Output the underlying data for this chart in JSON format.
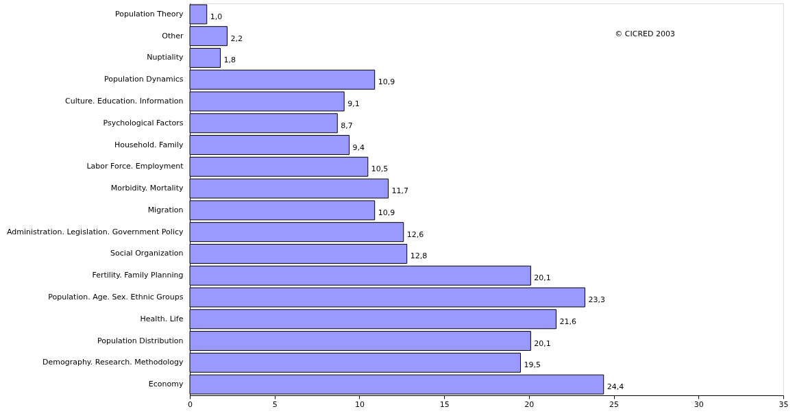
{
  "chart_data": {
    "type": "bar",
    "orientation": "horizontal",
    "categories": [
      "Population Theory",
      "Other",
      "Nuptiality",
      "Population Dynamics",
      "Culture. Education.  Information",
      "Psychological Factors",
      "Household. Family",
      "Labor Force. Employment",
      "Morbidity. Mortality",
      "Migration",
      "Administration. Legislation.  Government Policy",
      "Social Organization",
      "Fertility.  Family Planning",
      "Population. Age. Sex.  Ethnic Groups",
      "Health. Life",
      "Population Distribution",
      "Demography. Research.  Methodology",
      "Economy"
    ],
    "values": [
      1.0,
      2.2,
      1.8,
      10.9,
      9.1,
      8.7,
      9.4,
      10.5,
      11.7,
      10.9,
      12.6,
      12.8,
      20.1,
      23.3,
      21.6,
      20.1,
      19.5,
      24.4
    ],
    "value_labels": [
      "1,0",
      "2,2",
      "1,8",
      "10,9",
      "9,1",
      "8,7",
      "9,4",
      "10,5",
      "11,7",
      "10,9",
      "12,6",
      "12,8",
      "20,1",
      "23,3",
      "21,6",
      "20,1",
      "19,5",
      "24,4"
    ],
    "color": "#9999ff",
    "xlim": [
      0,
      35
    ],
    "xticks": [
      0,
      5,
      10,
      15,
      20,
      25,
      30,
      35
    ],
    "grid": false,
    "annotations": [
      "© CICRED 2003"
    ]
  }
}
